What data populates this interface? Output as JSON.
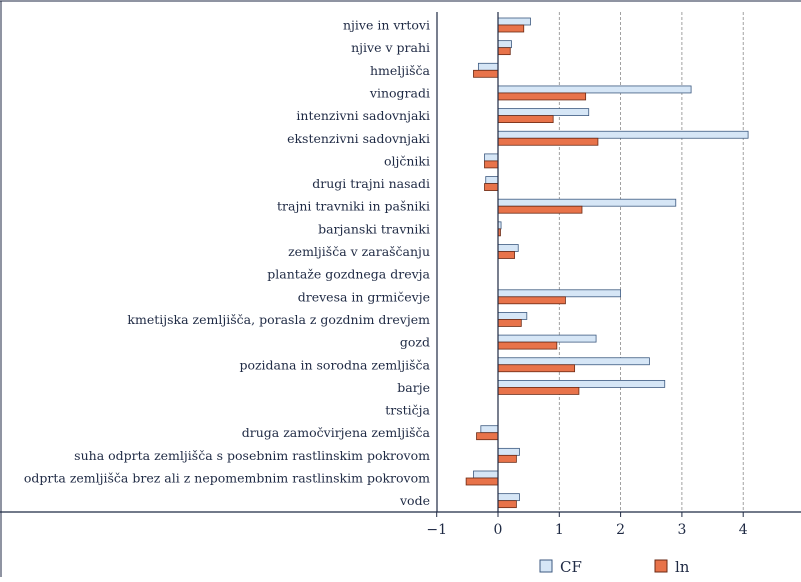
{
  "colors": {
    "cf_fill": "#d6e6f6",
    "cf_stroke": "#3d5a80",
    "ln_fill": "#e8734a",
    "ln_stroke": "#6b2a14",
    "grid": "#8a8a8a",
    "frame": "#1f2a44"
  },
  "legend": {
    "cf": "CF",
    "ln": "ln"
  },
  "chart_data": {
    "type": "bar",
    "orientation": "horizontal",
    "categories": [
      "njive in vrtovi",
      "njive v prahi",
      "hmeljišča",
      "vinogradi",
      "intenzivni sadovnjaki",
      "ekstenzivni sadovnjaki",
      "oljčniki",
      "drugi trajni nasadi",
      "trajni travniki in pašniki",
      "barjanski travniki",
      "zemljišča v zaraščanju",
      "plantaže gozdnega drevja",
      "drevesa in grmičevje",
      "kmetijska zemljišča, porasla z gozdnim drevjem",
      "gozd",
      "pozidana in sorodna zemljišča",
      "barje",
      "trstičja",
      "druga zamočvirjena zemljišča",
      "suha odprta zemljišča s posebnim rastlinskim pokrovom",
      "odprta zemljišča brez ali z nepomembnim rastlinskim pokrovom",
      "vode"
    ],
    "series": [
      {
        "name": "CF",
        "values": [
          0.53,
          0.22,
          -0.32,
          3.15,
          1.48,
          4.08,
          -0.22,
          -0.2,
          2.9,
          0.05,
          0.33,
          0,
          2.0,
          0.47,
          1.6,
          2.47,
          2.72,
          0,
          -0.28,
          0.35,
          -0.4,
          0.35
        ]
      },
      {
        "name": "ln",
        "values": [
          0.42,
          0.2,
          -0.4,
          1.43,
          0.9,
          1.63,
          -0.22,
          -0.22,
          1.37,
          0.04,
          0.27,
          0,
          1.1,
          0.38,
          0.96,
          1.25,
          1.32,
          0,
          -0.35,
          0.3,
          -0.52,
          0.3
        ]
      }
    ],
    "xticks": [
      "−1",
      "0",
      "1",
      "2",
      "3",
      "4"
    ],
    "xtick_values": [
      -1,
      0,
      1,
      2,
      3,
      4
    ],
    "xlim": [
      -1,
      4.9
    ],
    "grid": "vertical dashed at 1, 2, 3, 4",
    "legend_position": "bottom",
    "xlabel": "",
    "ylabel": "",
    "title": ""
  }
}
